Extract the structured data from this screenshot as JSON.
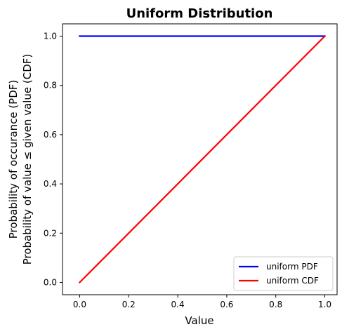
{
  "chart_data": {
    "type": "line",
    "title": "Uniform Distribution",
    "xlabel": "Value",
    "ylabel_lines": [
      "Probability of occurance (PDF)",
      "Probability of value  ≤  given value (CDF)"
    ],
    "xlim": [
      -0.07,
      1.05
    ],
    "ylim": [
      -0.05,
      1.05
    ],
    "x_ticks": [
      0.0,
      0.2,
      0.4,
      0.6,
      0.8,
      1.0
    ],
    "x_tick_labels": [
      "0.0",
      "0.2",
      "0.4",
      "0.6",
      "0.8",
      "1.0"
    ],
    "y_ticks": [
      0.0,
      0.2,
      0.4,
      0.6,
      0.8,
      1.0
    ],
    "y_tick_labels": [
      "0.0",
      "0.2",
      "0.4",
      "0.6",
      "0.8",
      "1.0"
    ],
    "grid": false,
    "legend_position": "lower-right",
    "series": [
      {
        "name": "uniform PDF",
        "color": "#0000ff",
        "x": [
          0.0,
          1.0
        ],
        "y": [
          1.0,
          1.0
        ]
      },
      {
        "name": "uniform CDF",
        "color": "#ff0000",
        "x": [
          0.0,
          1.0
        ],
        "y": [
          0.0,
          1.0
        ]
      }
    ]
  }
}
